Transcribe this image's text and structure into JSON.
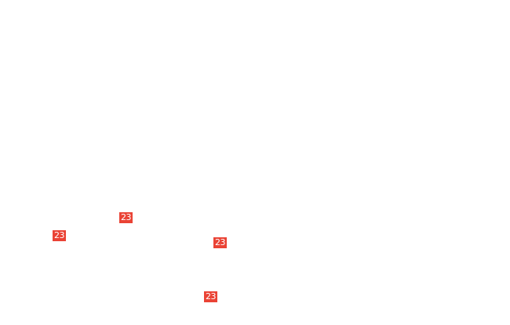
{
  "badge_color": "#ea4335",
  "badges": [
    {
      "label": "23"
    },
    {
      "label": "23"
    },
    {
      "label": "23"
    },
    {
      "label": "23"
    }
  ]
}
